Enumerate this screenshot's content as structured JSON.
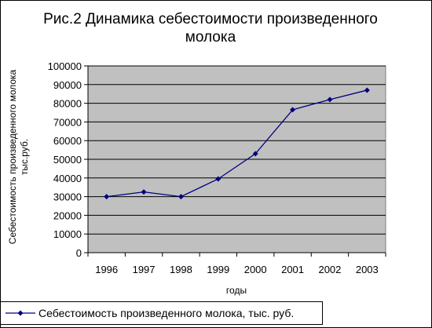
{
  "chart_data": {
    "type": "line",
    "title_lines": [
      "Рис.2 Динамика себестоимости произведенного",
      "молока"
    ],
    "xlabel": "годы",
    "ylabel_lines": [
      "Себестоимость произведенного молока",
      "тыс.руб."
    ],
    "categories": [
      "1996",
      "1997",
      "1998",
      "1999",
      "2000",
      "2001",
      "2002",
      "2003"
    ],
    "series": [
      {
        "name": "Себестоимость произведенного молока, тыс. руб.",
        "values": [
          30000,
          32500,
          30000,
          39500,
          53000,
          76500,
          82000,
          87000
        ]
      }
    ],
    "ylim": [
      0,
      100000
    ],
    "yticks": [
      "0",
      "10000",
      "20000",
      "30000",
      "40000",
      "50000",
      "60000",
      "70000",
      "80000",
      "90000",
      "100000"
    ],
    "grid": true,
    "legend_position": "bottom",
    "colors": {
      "plot_bg": "#c0c0c0",
      "line": "#000080",
      "grid": "#000000"
    }
  }
}
